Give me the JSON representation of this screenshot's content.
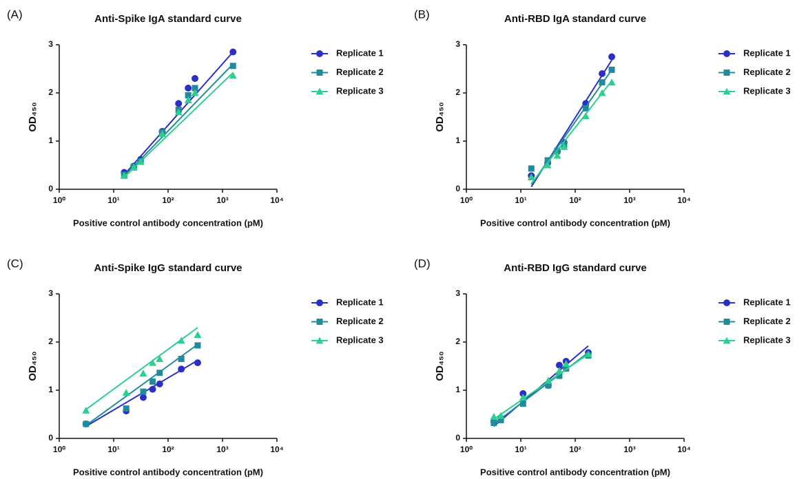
{
  "chart_data": [
    {
      "type": "scatter",
      "label": "(A)",
      "title": "Anti-Spike IgA standard curve",
      "x_label": "Positive control antibody concentration (pM)",
      "y_label": "OD₄₅₀",
      "xscale": "log",
      "xlim": [
        1,
        10000
      ],
      "ylim": [
        0,
        3
      ],
      "yticks": [
        0,
        1,
        2,
        3
      ],
      "xticks": [
        {
          "value": 1,
          "label": "10⁰"
        },
        {
          "value": 10,
          "label": "10¹"
        },
        {
          "value": 100,
          "label": "10²"
        },
        {
          "value": 1000,
          "label": "10³"
        },
        {
          "value": 10000,
          "label": "10⁴"
        }
      ],
      "legend": "right",
      "x": [
        15.6,
        23.4,
        31.25,
        78,
        156,
        234,
        312,
        1560
      ],
      "series": [
        {
          "name": "Replicate 1",
          "color": "#2b2fc6",
          "marker": "circle",
          "values": [
            0.35,
            0.48,
            0.62,
            1.2,
            1.78,
            2.1,
            2.3,
            2.85
          ],
          "fit": {
            "x": [
              15.6,
              1560
            ],
            "values": [
              0.3,
              2.85
            ]
          }
        },
        {
          "name": "Replicate 2",
          "color": "#1f8c9c",
          "marker": "square",
          "values": [
            0.3,
            0.47,
            0.58,
            1.18,
            1.65,
            1.95,
            2.1,
            2.56
          ],
          "fit": {
            "x": [
              15.6,
              1560
            ],
            "values": [
              0.27,
              2.6
            ]
          }
        },
        {
          "name": "Replicate 3",
          "color": "#2dcf8f",
          "marker": "triangle",
          "values": [
            0.28,
            0.45,
            0.57,
            1.15,
            1.6,
            1.85,
            2.0,
            2.36
          ],
          "fit": {
            "x": [
              15.6,
              1560
            ],
            "values": [
              0.25,
              2.42
            ]
          }
        }
      ]
    },
    {
      "type": "scatter",
      "label": "(B)",
      "title": "Anti-RBD IgA standard curve",
      "x_label": "Positive control antibody concentration (pM)",
      "y_label": "OD₄₅₀",
      "xscale": "log",
      "xlim": [
        1,
        10000
      ],
      "ylim": [
        0,
        3
      ],
      "yticks": [
        0,
        1,
        2,
        3
      ],
      "xticks": [
        {
          "value": 1,
          "label": "10⁰"
        },
        {
          "value": 10,
          "label": "10¹"
        },
        {
          "value": 100,
          "label": "10²"
        },
        {
          "value": 1000,
          "label": "10³"
        },
        {
          "value": 10000,
          "label": "10⁴"
        }
      ],
      "legend": "right",
      "x": [
        15.6,
        31.25,
        46.9,
        62.5,
        156,
        312,
        469
      ],
      "series": [
        {
          "name": "Replicate 1",
          "color": "#2b2fc6",
          "marker": "circle",
          "values": [
            0.28,
            0.55,
            0.78,
            0.97,
            1.78,
            2.4,
            2.75
          ],
          "fit": {
            "x": [
              15.6,
              469
            ],
            "values": [
              0.05,
              2.68
            ]
          }
        },
        {
          "name": "Replicate 2",
          "color": "#1f8c9c",
          "marker": "square",
          "values": [
            0.43,
            0.6,
            0.8,
            0.92,
            1.68,
            2.22,
            2.48
          ],
          "fit": {
            "x": [
              15.6,
              469
            ],
            "values": [
              0.1,
              2.48
            ]
          }
        },
        {
          "name": "Replicate 3",
          "color": "#2dcf8f",
          "marker": "triangle",
          "values": [
            0.25,
            0.5,
            0.7,
            0.88,
            1.52,
            2.0,
            2.22
          ],
          "fit": {
            "x": [
              15.6,
              469
            ],
            "values": [
              0.12,
              2.25
            ]
          }
        }
      ]
    },
    {
      "type": "scatter",
      "label": "(C)",
      "title": "Anti-Spike IgG standard curve",
      "x_label": "Positive control antibody concentration (pM)",
      "y_label": "OD₄₅₀",
      "xscale": "log",
      "xlim": [
        1,
        10000
      ],
      "ylim": [
        0,
        3
      ],
      "yticks": [
        0,
        1,
        2,
        3
      ],
      "xticks": [
        {
          "value": 1,
          "label": "10⁰"
        },
        {
          "value": 10,
          "label": "10¹"
        },
        {
          "value": 100,
          "label": "10²"
        },
        {
          "value": 1000,
          "label": "10³"
        },
        {
          "value": 10000,
          "label": "10⁴"
        }
      ],
      "legend": "right",
      "x": [
        3.1,
        17,
        35,
        52,
        70,
        175,
        350
      ],
      "series": [
        {
          "name": "Replicate 1",
          "color": "#2b2fc6",
          "marker": "circle",
          "values": [
            0.3,
            0.57,
            0.85,
            1.02,
            1.13,
            1.44,
            1.57
          ],
          "fit": {
            "x": [
              3.1,
              350
            ],
            "values": [
              0.25,
              1.62
            ]
          }
        },
        {
          "name": "Replicate 2",
          "color": "#1f8c9c",
          "marker": "square",
          "values": [
            0.3,
            0.62,
            0.97,
            1.18,
            1.36,
            1.65,
            1.93
          ],
          "fit": {
            "x": [
              3.1,
              350
            ],
            "values": [
              0.27,
              1.95
            ]
          }
        },
        {
          "name": "Replicate 3",
          "color": "#2dcf8f",
          "marker": "triangle",
          "values": [
            0.58,
            0.95,
            1.35,
            1.57,
            1.65,
            2.03,
            2.15
          ],
          "fit": {
            "x": [
              3.1,
              350
            ],
            "values": [
              0.6,
              2.3
            ]
          }
        }
      ]
    },
    {
      "type": "scatter",
      "label": "(D)",
      "title": "Anti-RBD IgG standard curve",
      "x_label": "Positive control antibody concentration (pM)",
      "y_label": "OD₄₅₀",
      "xscale": "log",
      "xlim": [
        1,
        10000
      ],
      "ylim": [
        0,
        3
      ],
      "yticks": [
        0,
        1,
        2,
        3
      ],
      "xticks": [
        {
          "value": 1,
          "label": "10⁰"
        },
        {
          "value": 10,
          "label": "10¹"
        },
        {
          "value": 100,
          "label": "10²"
        },
        {
          "value": 1000,
          "label": "10³"
        },
        {
          "value": 10000,
          "label": "10⁴"
        }
      ],
      "legend": "right",
      "x": [
        3.2,
        4.3,
        11,
        32,
        51,
        68,
        174
      ],
      "series": [
        {
          "name": "Replicate 1",
          "color": "#2b2fc6",
          "marker": "circle",
          "values": [
            0.35,
            0.42,
            0.93,
            1.1,
            1.52,
            1.6,
            1.78
          ],
          "fit": {
            "x": [
              3.2,
              174
            ],
            "values": [
              0.25,
              1.92
            ]
          }
        },
        {
          "name": "Replicate 2",
          "color": "#1f8c9c",
          "marker": "square",
          "values": [
            0.32,
            0.38,
            0.72,
            1.1,
            1.3,
            1.45,
            1.72
          ],
          "fit": {
            "x": [
              3.2,
              174
            ],
            "values": [
              0.3,
              1.78
            ]
          }
        },
        {
          "name": "Replicate 3",
          "color": "#2dcf8f",
          "marker": "triangle",
          "values": [
            0.45,
            0.47,
            0.85,
            1.2,
            1.4,
            1.55,
            1.75
          ],
          "fit": {
            "x": [
              3.2,
              174
            ],
            "values": [
              0.4,
              1.75
            ]
          }
        }
      ]
    }
  ]
}
